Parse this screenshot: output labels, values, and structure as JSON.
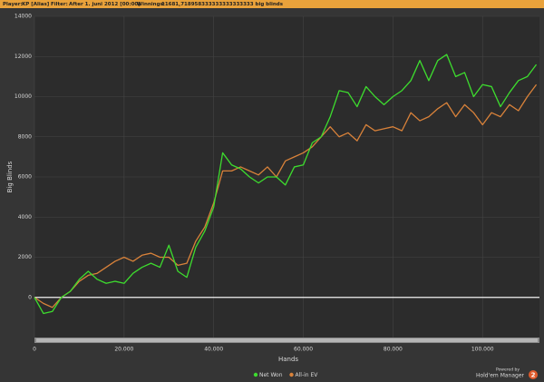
{
  "header": {
    "player_label": "Player:",
    "player": "KP [Alias]",
    "filter_label": "Filter:",
    "filter": "After 1. juni 2012 [00:00]",
    "winnings_label": "Winnings:",
    "winnings": "11681,718958333333333333333 big blinds"
  },
  "footer": {
    "powered": "Powered by",
    "brand": "Hold'em Manager",
    "version": "2"
  },
  "chart_data": {
    "type": "line",
    "x_label": "Hands",
    "y_label": "Big Blinds",
    "x": [
      0,
      2000,
      4000,
      6000,
      8000,
      10000,
      12000,
      14000,
      16000,
      18000,
      20000,
      22000,
      24000,
      26000,
      28000,
      30000,
      32000,
      34000,
      36000,
      38000,
      40000,
      42000,
      44000,
      46000,
      48000,
      50000,
      52000,
      54000,
      56000,
      58000,
      60000,
      62000,
      64000,
      66000,
      68000,
      70000,
      72000,
      74000,
      76000,
      78000,
      80000,
      82000,
      84000,
      86000,
      88000,
      90000,
      92000,
      94000,
      96000,
      98000,
      100000,
      102000,
      104000,
      106000,
      108000,
      110000,
      112000
    ],
    "series": [
      {
        "name": "Net Won",
        "color": "#3ddc2e",
        "values": [
          0,
          -800,
          -700,
          0,
          300,
          900,
          1300,
          900,
          700,
          800,
          700,
          1200,
          1500,
          1700,
          1500,
          2600,
          1300,
          1000,
          2500,
          3300,
          4500,
          7200,
          6600,
          6400,
          6000,
          5700,
          6000,
          6000,
          5600,
          6500,
          6600,
          7700,
          8000,
          9000,
          10300,
          10200,
          9500,
          10500,
          10000,
          9600,
          10000,
          10300,
          10800,
          11800,
          10800,
          11800,
          12100,
          11000,
          11200,
          10000,
          10600,
          10500,
          9500,
          10200,
          10800,
          11000,
          11600
        ]
      },
      {
        "name": "All-in EV",
        "color": "#d9823a",
        "values": [
          0,
          -300,
          -500,
          0,
          300,
          800,
          1100,
          1200,
          1500,
          1800,
          2000,
          1800,
          2100,
          2200,
          2000,
          2000,
          1600,
          1700,
          2800,
          3500,
          4700,
          6300,
          6300,
          6500,
          6300,
          6100,
          6500,
          6000,
          6800,
          7000,
          7200,
          7500,
          8000,
          8500,
          8000,
          8200,
          7800,
          8600,
          8300,
          8400,
          8500,
          8300,
          9200,
          8800,
          9000,
          9400,
          9700,
          9000,
          9600,
          9200,
          8600,
          9200,
          9000,
          9600,
          9300,
          10000,
          10600
        ]
      }
    ],
    "xlim": [
      0,
      112700
    ],
    "ylim": [
      -2000,
      14000
    ],
    "xticks": [
      0,
      {
        "value": 20000,
        "label": "20.000"
      },
      {
        "value": 40000,
        "label": "40.000"
      },
      {
        "value": 60000,
        "label": "60.000"
      },
      {
        "value": 80000,
        "label": "80.000"
      },
      {
        "value": 100000,
        "label": "100.000"
      }
    ],
    "yticks": [
      0,
      2000,
      4000,
      6000,
      8000,
      10000,
      12000,
      14000
    ],
    "grid": true,
    "legend": "bottom"
  }
}
